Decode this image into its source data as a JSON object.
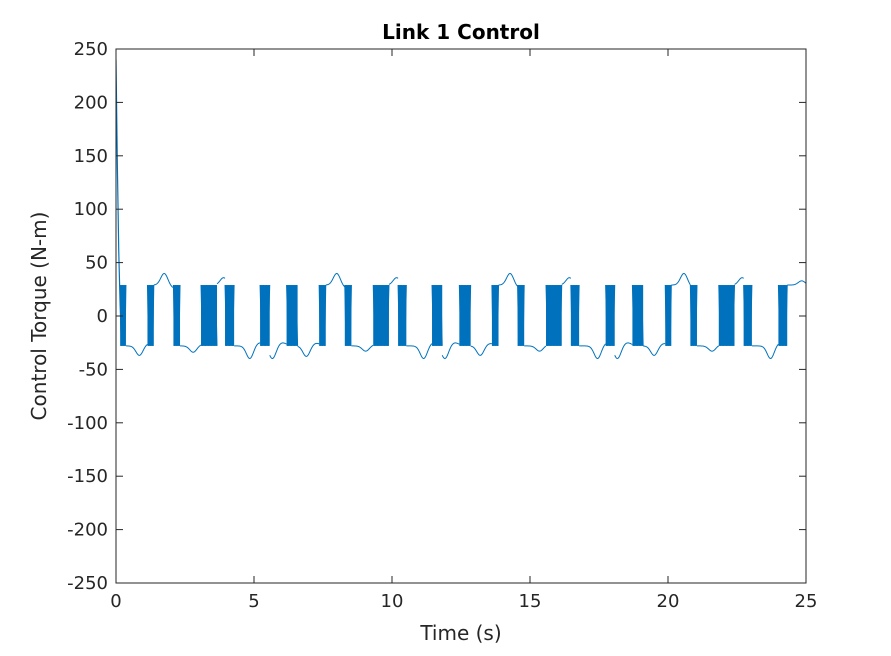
{
  "chart_data": {
    "type": "line",
    "title": "Link 1 Control",
    "xlabel": "Time (s)",
    "ylabel": "Control Torque (N-m)",
    "xlim": [
      0,
      25
    ],
    "ylim": [
      -250,
      250
    ],
    "xticks": [
      "0",
      "5",
      "10",
      "15",
      "20",
      "25"
    ],
    "yticks": [
      "250",
      "200",
      "150",
      "100",
      "50",
      "0",
      "-50",
      "-100",
      "-150",
      "-200",
      "-250"
    ],
    "grid": false,
    "legend": "none",
    "series": [
      {
        "color": "#0072BD",
        "description_points": {
          "x": [
            0,
            0.02,
            0.05,
            0.1,
            0.15,
            0.2
          ],
          "y": [
            240,
            200,
            140,
            60,
            10,
            -27
          ]
        },
        "chattering_amplitude": [
          -28,
          29
        ],
        "switching_bursts": [
          [
            0.15,
            0.36
          ],
          [
            1.14,
            1.37
          ],
          [
            2.08,
            2.32
          ],
          [
            3.08,
            3.66
          ],
          [
            3.95,
            4.28
          ],
          [
            5.22,
            5.57
          ],
          [
            6.18,
            6.58
          ],
          [
            7.36,
            7.6
          ],
          [
            8.29,
            8.53
          ],
          [
            9.32,
            9.89
          ],
          [
            10.22,
            10.52
          ],
          [
            11.45,
            11.82
          ],
          [
            12.44,
            12.85
          ],
          [
            13.62,
            13.86
          ],
          [
            14.55,
            14.79
          ],
          [
            15.58,
            16.15
          ],
          [
            16.48,
            16.78
          ],
          [
            17.74,
            18.07
          ],
          [
            18.71,
            19.1
          ],
          [
            19.9,
            20.12
          ],
          [
            20.81,
            21.05
          ],
          [
            21.84,
            22.41
          ],
          [
            22.74,
            23.04
          ],
          [
            24.0,
            24.32
          ]
        ],
        "overshoot_peaks": {
          "t": [
            0.85,
            1.75,
            2.8,
            3.95,
            4.85,
            6.9,
            8.0,
            9.05,
            10.25,
            11.15,
            13.2,
            14.28,
            15.35,
            16.52,
            17.45,
            19.5,
            20.58,
            21.6,
            22.77,
            23.72,
            24.85
          ],
          "value": [
            -37,
            40,
            -34,
            36,
            -40,
            -38,
            40,
            -33,
            36,
            -40,
            -37,
            40,
            -33,
            36,
            -40,
            -37,
            40,
            -33,
            36,
            -40,
            33
          ]
        }
      }
    ]
  }
}
